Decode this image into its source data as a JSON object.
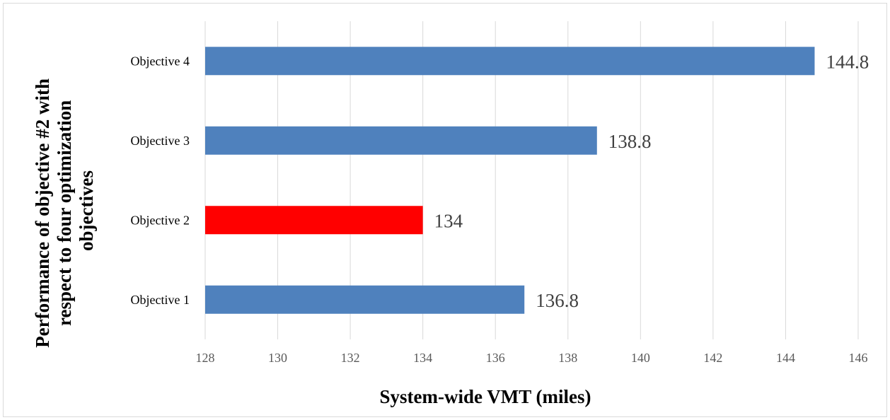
{
  "chart_data": {
    "type": "bar",
    "orientation": "horizontal",
    "categories": [
      "Objective 1",
      "Objective 2",
      "Objective 3",
      "Objective 4"
    ],
    "values": [
      136.8,
      134,
      138.8,
      144.8
    ],
    "data_labels": [
      "136.8",
      "134",
      "138.8",
      "144.8"
    ],
    "colors": [
      "#4f81bd",
      "#ff0000",
      "#4f81bd",
      "#4f81bd"
    ],
    "xlabel": "System-wide VMT (miles)",
    "ylabel_lines": [
      "Performance of objective #2 with",
      "respect to four optimization",
      "objectives"
    ],
    "xlim": [
      128,
      146
    ],
    "xticks": [
      128,
      130,
      132,
      134,
      136,
      138,
      140,
      142,
      144,
      146
    ],
    "xtick_labels": [
      "128",
      "130",
      "132",
      "134",
      "136",
      "138",
      "140",
      "142",
      "144",
      "146"
    ],
    "grid": true,
    "legend": false
  }
}
